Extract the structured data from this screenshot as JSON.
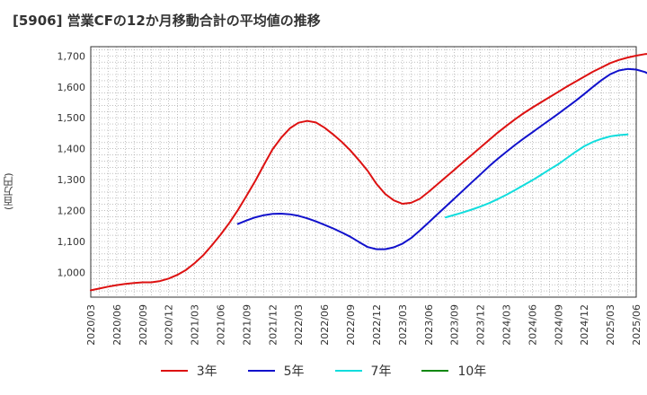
{
  "chart_data": {
    "type": "line",
    "title": "[5906]  営業CFの12か月移動合計の平均値の推移",
    "ylabel": "(百万円)",
    "ylim": [
      920,
      1730
    ],
    "yticks": [
      1000,
      1100,
      1200,
      1300,
      1400,
      1500,
      1600,
      1700
    ],
    "ytick_labels": [
      "1,000",
      "1,100",
      "1,200",
      "1,300",
      "1,400",
      "1,500",
      "1,600",
      "1,700"
    ],
    "xlim": [
      "2020/03",
      "2025/06"
    ],
    "xtick_labels": [
      "2020/03",
      "2020/06",
      "2020/09",
      "2020/12",
      "2021/03",
      "2021/06",
      "2021/09",
      "2021/12",
      "2022/03",
      "2022/06",
      "2022/09",
      "2022/12",
      "2023/03",
      "2023/06",
      "2023/09",
      "2023/12",
      "2024/03",
      "2024/06",
      "2024/09",
      "2024/12",
      "2025/03",
      "2025/06"
    ],
    "grid": true,
    "legend_position": "bottom",
    "series": [
      {
        "name": "3年",
        "color": "#dd1111",
        "start": "2020/03",
        "values": [
          942,
          948,
          954,
          959,
          963,
          966,
          968,
          968,
          972,
          980,
          992,
          1008,
          1030,
          1056,
          1088,
          1122,
          1160,
          1202,
          1248,
          1296,
          1348,
          1398,
          1436,
          1466,
          1484,
          1490,
          1485,
          1468,
          1446,
          1422,
          1394,
          1362,
          1328,
          1286,
          1254,
          1233,
          1222,
          1225,
          1238,
          1260,
          1284,
          1308,
          1332,
          1356,
          1380,
          1404,
          1428,
          1452,
          1474,
          1495,
          1515,
          1533,
          1550,
          1567,
          1584,
          1601,
          1617,
          1633,
          1649,
          1663,
          1677,
          1687,
          1695,
          1701,
          1706,
          1708
        ]
      },
      {
        "name": "5年",
        "color": "#1111cc",
        "start": "2021/08",
        "values": [
          1157,
          1168,
          1178,
          1185,
          1189,
          1190,
          1188,
          1183,
          1175,
          1165,
          1154,
          1142,
          1129,
          1115,
          1098,
          1082,
          1075,
          1075,
          1081,
          1093,
          1111,
          1135,
          1161,
          1187,
          1213,
          1239,
          1265,
          1291,
          1317,
          1343,
          1367,
          1390,
          1412,
          1433,
          1453,
          1473,
          1493,
          1513,
          1534,
          1555,
          1577,
          1600,
          1622,
          1641,
          1653,
          1658,
          1656,
          1648,
          1634
        ]
      },
      {
        "name": "7年",
        "color": "#11dddd",
        "start": "2023/08",
        "values": [
          1178,
          1186,
          1194,
          1203,
          1213,
          1224,
          1237,
          1251,
          1266,
          1282,
          1298,
          1315,
          1333,
          1350,
          1370,
          1390,
          1408,
          1422,
          1432,
          1440,
          1444,
          1446
        ]
      },
      {
        "name": "10年",
        "color": "#118811",
        "start": "",
        "values": []
      }
    ]
  }
}
